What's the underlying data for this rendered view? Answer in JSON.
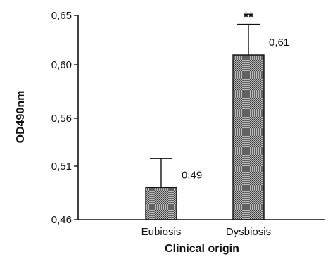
{
  "chart_data": {
    "type": "bar",
    "title": "",
    "xlabel": "Clinical origin",
    "ylabel": "OD490nm",
    "ylim": [
      0.46,
      0.65
    ],
    "yticks": [
      "0,46",
      "0,51",
      "0,56",
      "0,60",
      "0,65"
    ],
    "ytick_values": [
      0.46,
      0.51,
      0.56,
      0.6,
      0.65
    ],
    "categories": [
      "Eubiosis",
      "Dysbiosis"
    ],
    "values": [
      0.49,
      0.61
    ],
    "error_upper": [
      0.518,
      0.641
    ],
    "value_labels": [
      "0,49",
      "0,61"
    ],
    "significance": [
      "",
      "**"
    ],
    "grid": false,
    "legend": "none",
    "bar_fill": "crosshatch",
    "colors": {
      "bar_edge": "#111111",
      "hatch": "#333333",
      "bar_bg": "#e6e6e6"
    }
  }
}
